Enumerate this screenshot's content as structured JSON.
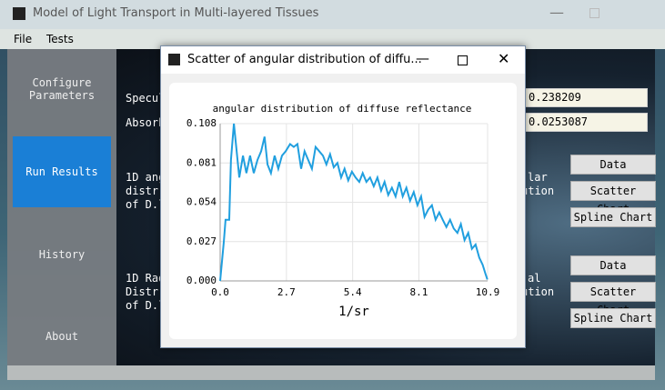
{
  "window": {
    "title": "Model of Light Transport in Multi-layered Tissues"
  },
  "menu": [
    "File",
    "Tests"
  ],
  "sidebar": [
    "Configure\nParameters",
    "Run Results",
    "History",
    "About"
  ],
  "main": {
    "fields": [
      {
        "label": "Specul",
        "value": "0.238209"
      },
      {
        "label": "Absorb",
        "value": "0.0253087"
      }
    ],
    "sections": [
      {
        "left": [
          "1D ang",
          "distr",
          "of D.l"
        ],
        "right": [
          "lar",
          "ution"
        ],
        "buttons": [
          "Data",
          "Scatter Chart",
          "Spline Chart"
        ]
      },
      {
        "left": [
          "1D Rad",
          "Distr",
          "of D.l"
        ],
        "right": [
          "al",
          "ution"
        ],
        "buttons": [
          "Data",
          "Scatter Chart",
          "Spline Chart"
        ]
      }
    ]
  },
  "dialog": {
    "title": "Scatter of angular distribution of diffu..."
  },
  "chart_data": {
    "type": "line",
    "title": "angular distribution of diffuse reflectance",
    "x_label": "1/sr",
    "grid": true,
    "xlim": [
      0,
      10.9
    ],
    "xticks": [
      {
        "value": 0,
        "label": "0.0"
      },
      2.7,
      5.4,
      8.1,
      10.9
    ],
    "ylim": [
      0,
      0.108
    ],
    "yticks": [
      {
        "value": 0,
        "label": "0.000"
      },
      0.027,
      0.054,
      0.081,
      0.108
    ],
    "series": [
      {
        "color": "#209fdf",
        "x": [
          0,
          0.15,
          0.22,
          0.37,
          0.44,
          0.56,
          0.78,
          0.93,
          1.07,
          1.22,
          1.37,
          1.52,
          1.67,
          1.81,
          1.93,
          2.07,
          2.22,
          2.37,
          2.52,
          2.67,
          2.85,
          3.0,
          3.15,
          3.3,
          3.44,
          3.59,
          3.74,
          3.89,
          4.04,
          4.19,
          4.33,
          4.48,
          4.63,
          4.78,
          4.93,
          5.07,
          5.22,
          5.37,
          5.52,
          5.67,
          5.81,
          5.96,
          6.11,
          6.26,
          6.41,
          6.56,
          6.7,
          6.85,
          7.0,
          7.15,
          7.3,
          7.44,
          7.59,
          7.74,
          7.89,
          8.04,
          8.19,
          8.33,
          8.48,
          8.63,
          8.78,
          8.93,
          9.07,
          9.22,
          9.37,
          9.52,
          9.67,
          9.81,
          9.96,
          10.11,
          10.26,
          10.41,
          10.56,
          10.7,
          10.81,
          10.89
        ],
        "values": [
          0,
          0.027,
          0.042,
          0.042,
          0.083,
          0.108,
          0.071,
          0.086,
          0.074,
          0.086,
          0.074,
          0.083,
          0.089,
          0.099,
          0.08,
          0.074,
          0.086,
          0.077,
          0.086,
          0.089,
          0.094,
          0.092,
          0.094,
          0.077,
          0.089,
          0.083,
          0.077,
          0.092,
          0.089,
          0.086,
          0.08,
          0.087,
          0.078,
          0.081,
          0.071,
          0.077,
          0.069,
          0.075,
          0.071,
          0.068,
          0.074,
          0.068,
          0.071,
          0.065,
          0.071,
          0.062,
          0.068,
          0.059,
          0.064,
          0.058,
          0.068,
          0.058,
          0.064,
          0.055,
          0.061,
          0.052,
          0.058,
          0.044,
          0.049,
          0.052,
          0.042,
          0.047,
          0.042,
          0.037,
          0.042,
          0.036,
          0.033,
          0.039,
          0.028,
          0.033,
          0.022,
          0.025,
          0.016,
          0.011,
          0.005,
          0.001
        ]
      }
    ]
  }
}
